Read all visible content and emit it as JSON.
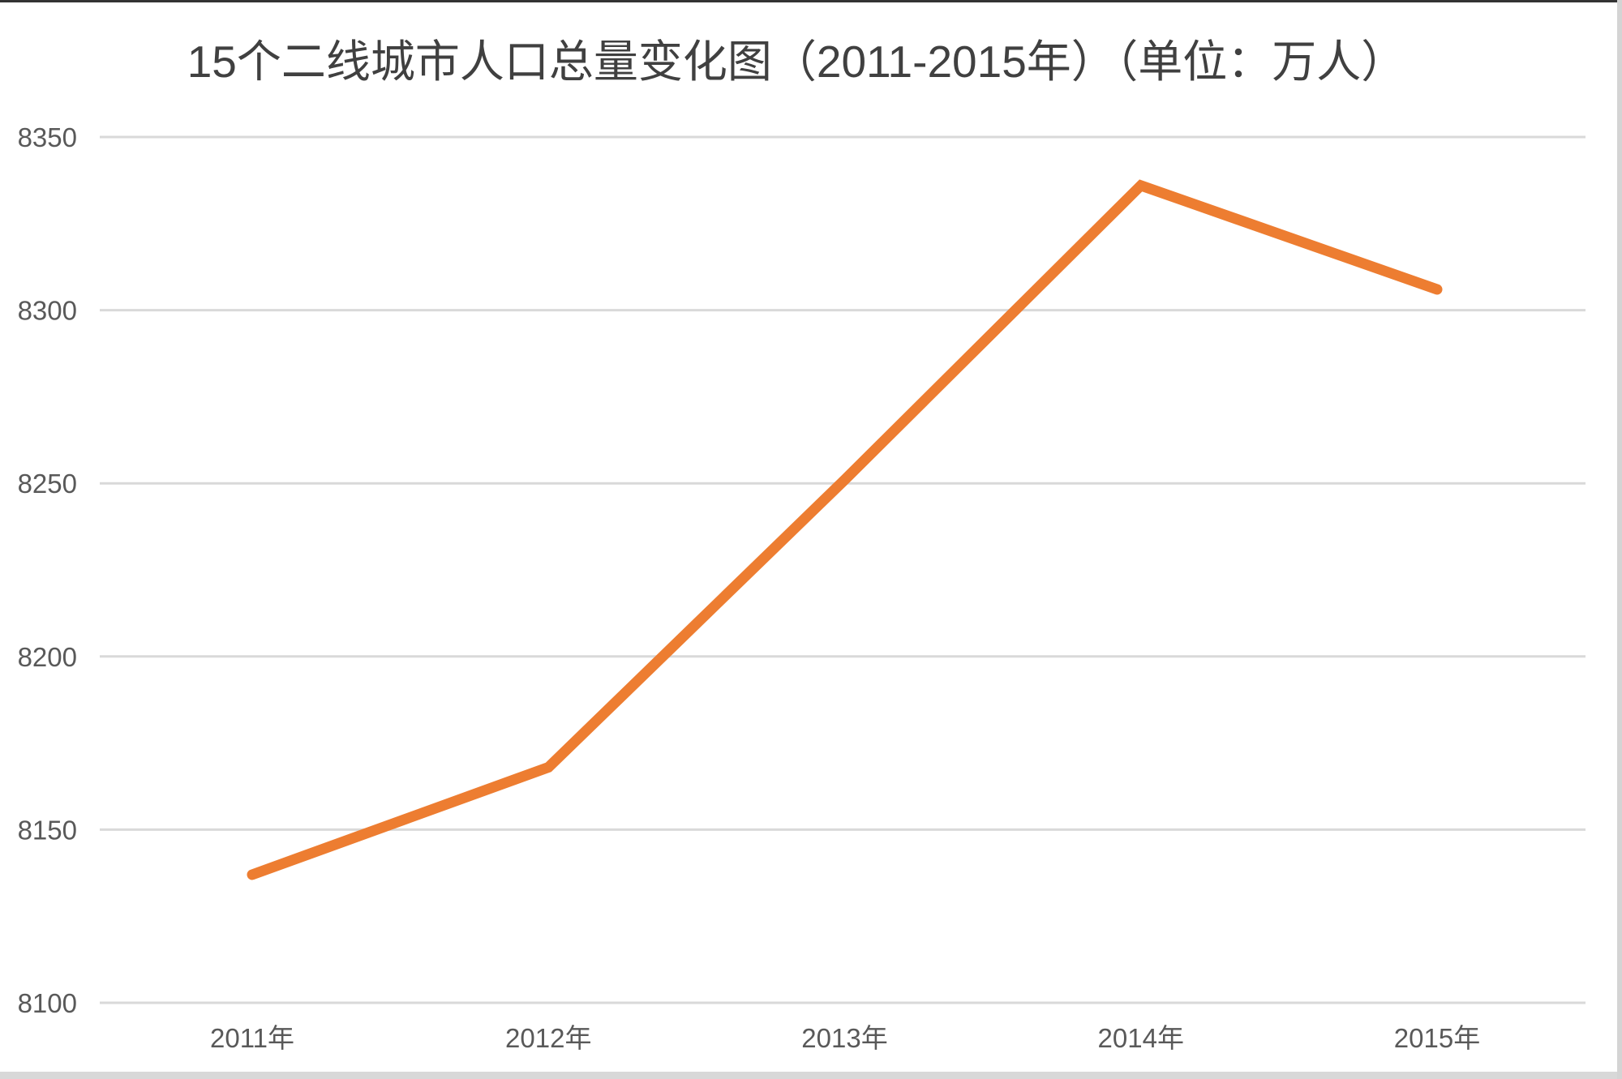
{
  "window": {
    "top_edge_color": "#333333",
    "bottom_bar_color": "#d8d8d8",
    "right_bar_color": "#d4d4d4",
    "background_color": "#ffffff"
  },
  "chart_data": {
    "type": "line",
    "title": "15个二线城市人口总量变化图（2011-2015年）（单位：万人）",
    "categories": [
      "2011年",
      "2012年",
      "2013年",
      "2014年",
      "2015年"
    ],
    "values": [
      8137,
      8168,
      8251,
      8336,
      8306
    ],
    "yticks": [
      8350,
      8300,
      8250,
      8200,
      8150,
      8100
    ],
    "ylim": [
      8100,
      8350
    ],
    "xlabel": "",
    "ylabel": "",
    "grid": true,
    "legend": false,
    "line_color": "#ED7D31",
    "gridline_color": "#D9D9D9",
    "title_color": "#404040",
    "tick_color": "#595959"
  }
}
